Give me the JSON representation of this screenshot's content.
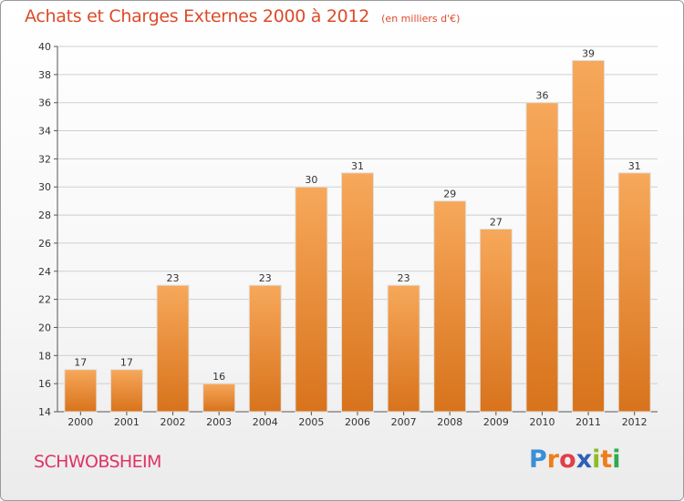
{
  "header": {
    "title": "Achats et Charges Externes 2000 à 2012",
    "subtitle": "(en milliers d'€)"
  },
  "commune": "SCHWOBSHEIM",
  "brand": {
    "name": "Proxiti",
    "letters": [
      {
        "char": "P",
        "color": "#3a8fd6"
      },
      {
        "char": "r",
        "color": "#ef7d1a"
      },
      {
        "char": "o",
        "color": "#e0404a"
      },
      {
        "char": "x",
        "color": "#2f5fb6"
      },
      {
        "char": "i",
        "color": "#8dbb2a"
      },
      {
        "char": "t",
        "color": "#ef7d1a"
      },
      {
        "char": "i",
        "color": "#2fa84f"
      }
    ]
  },
  "colors": {
    "bar_top": "#f7a85a",
    "bar_bottom": "#d8731c",
    "grid": "#cfcfcf",
    "title": "#dd4a2a",
    "commune": "#dd3366"
  },
  "chart_data": {
    "type": "bar",
    "title": "Achats et Charges Externes 2000 à 2012",
    "subtitle": "(en milliers d'€)",
    "categories": [
      "2000",
      "2001",
      "2002",
      "2003",
      "2004",
      "2005",
      "2006",
      "2007",
      "2008",
      "2009",
      "2010",
      "2011",
      "2012"
    ],
    "values": [
      17,
      17,
      23,
      16,
      23,
      30,
      31,
      23,
      29,
      27,
      36,
      39,
      31
    ],
    "ylim": [
      14,
      40
    ],
    "yticks": [
      14,
      16,
      18,
      20,
      22,
      24,
      26,
      28,
      30,
      32,
      34,
      36,
      38,
      40
    ],
    "grid": true,
    "data_labels": true
  }
}
